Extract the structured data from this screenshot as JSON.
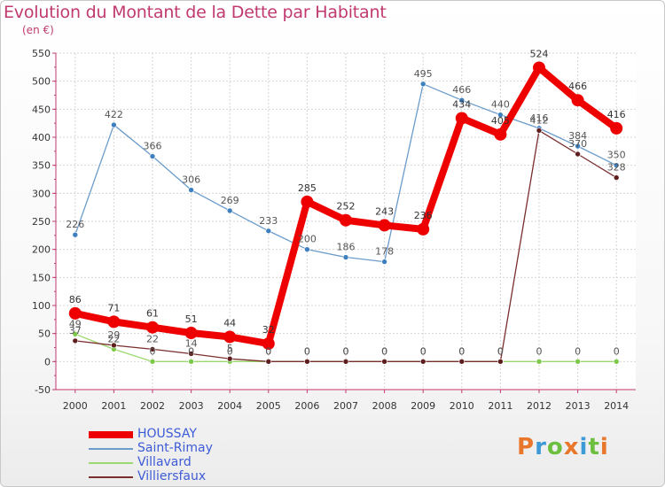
{
  "title": "Evolution du Montant de la Dette par Habitant",
  "subtitle": "(en €)",
  "logo": "Proxiti",
  "logo_colors": [
    "#e8762b",
    "#3c9bd6",
    "#6cbf3f",
    "#e8762b",
    "#3c9bd6",
    "#6cbf3f",
    "#e8762b"
  ],
  "chart_data": {
    "type": "line",
    "categories": [
      "2000",
      "2001",
      "2002",
      "2003",
      "2004",
      "2005",
      "2006",
      "2007",
      "2008",
      "2009",
      "2010",
      "2011",
      "2012",
      "2013",
      "2014"
    ],
    "ylim": [
      -50,
      550
    ],
    "yticks": [
      -50,
      0,
      50,
      100,
      150,
      200,
      250,
      300,
      350,
      400,
      450,
      500,
      550
    ],
    "grid": true,
    "legend_position": "bottom-left",
    "series": [
      {
        "name": "Saint-Rimay",
        "color": "#6b9ccb",
        "dot": "#3d7fbf",
        "width": 1.3,
        "values": [
          226,
          422,
          366,
          306,
          269,
          233,
          200,
          186,
          178,
          495,
          466,
          440,
          416,
          384,
          350
        ],
        "labels": [
          "226",
          "422",
          "366",
          "306",
          "269",
          "233",
          "200",
          "186",
          "178",
          "495",
          "466",
          "440",
          "416",
          "384",
          "350"
        ]
      },
      {
        "name": "Villavard",
        "color": "#9bd86f",
        "dot": "#7cc94a",
        "width": 1.3,
        "values": [
          49,
          22,
          0,
          0,
          0,
          0,
          0,
          0,
          0,
          0,
          0,
          0,
          0,
          0,
          0
        ],
        "labels": [
          "49",
          "22",
          "0",
          "0",
          "0",
          "0",
          "0",
          "0",
          "0",
          "0",
          "0",
          "0",
          "0",
          "0",
          "0"
        ]
      },
      {
        "name": "Villiersfaux",
        "color": "#7a2e2e",
        "dot": "#5e1e1e",
        "width": 1.3,
        "values": [
          37,
          29,
          22,
          14,
          5,
          0,
          0,
          0,
          0,
          0,
          0,
          0,
          412,
          370,
          328
        ],
        "labels": [
          "37",
          "29",
          "22",
          "14",
          "5",
          "0",
          "0",
          "0",
          "0",
          "0",
          "0",
          "0",
          "412",
          "370",
          "328"
        ]
      },
      {
        "name": "HOUSSAY",
        "color": "#ee0000",
        "dot": "#ee0000",
        "width": 8,
        "values": [
          86,
          71,
          61,
          51,
          44,
          32,
          285,
          252,
          243,
          236,
          434,
          405,
          524,
          466,
          416
        ],
        "labels": [
          "86",
          "71",
          "61",
          "51",
          "44",
          "32",
          "285",
          "252",
          "243",
          "236",
          "434",
          "405",
          "524",
          "466",
          "416"
        ]
      }
    ]
  }
}
